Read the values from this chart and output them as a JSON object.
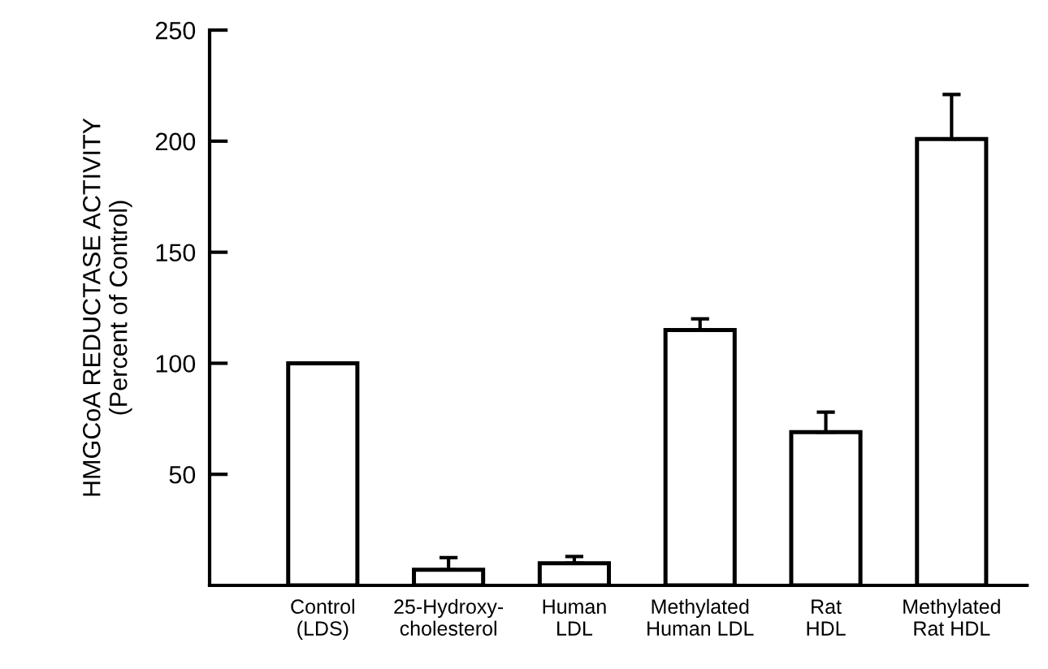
{
  "chart_data": {
    "type": "bar",
    "ylabel": "HMGCoA REDUCTASE ACTIVITY\n(Percent of Control)",
    "categories": [
      "Control\n(LDS)",
      "25-Hydroxy-\ncholesterol",
      "Human\nLDL",
      "Methylated\nHuman LDL",
      "Rat\nHDL",
      "Methylated\nRat HDL"
    ],
    "values": [
      100,
      7,
      10,
      115,
      69,
      201
    ],
    "errors": [
      null,
      [
        7,
        12.5
      ],
      [
        10,
        13
      ],
      [
        115,
        120
      ],
      [
        69,
        78
      ],
      [
        201,
        221
      ]
    ],
    "color": "#ffffff",
    "ylim": [
      0,
      250
    ],
    "yticks": [
      50,
      100,
      150,
      200,
      250
    ],
    "grid": false
  }
}
